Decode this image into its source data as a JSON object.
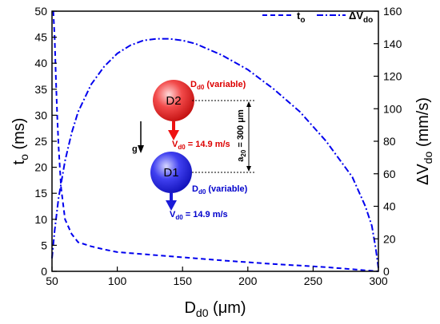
{
  "chart_data": {
    "type": "line",
    "xlabel": "D",
    "xlabel_sub": "d0",
    "xlabel_unit": " (μm)",
    "ylabel_left": "t",
    "ylabel_left_sub": "o",
    "ylabel_left_unit": " (ms)",
    "ylabel_right": "ΔV",
    "ylabel_right_sub": "do",
    "ylabel_right_unit": " (mm/s)",
    "xlim": [
      50,
      300
    ],
    "ylim_left": [
      0,
      50
    ],
    "ylim_right": [
      0,
      160
    ],
    "x_ticks": [
      "50",
      "100",
      "150",
      "200",
      "250",
      "300"
    ],
    "y_left_ticks": [
      "0",
      "5",
      "10",
      "15",
      "20",
      "25",
      "30",
      "35",
      "40",
      "45",
      "50"
    ],
    "y_right_ticks": [
      "0",
      "20",
      "40",
      "60",
      "80",
      "100",
      "120",
      "140",
      "160"
    ],
    "legend": {
      "position": "top-right"
    },
    "series": [
      {
        "name": "t",
        "name_sub": "o",
        "axis": "left",
        "color": "#0000ee",
        "dash": "dashed",
        "x": [
          51,
          52,
          53,
          54,
          55,
          57,
          60,
          65,
          70,
          80,
          90,
          100,
          120,
          140,
          160,
          180,
          200,
          220,
          240,
          260,
          280,
          300
        ],
        "y": [
          50,
          45,
          37,
          30,
          24,
          16,
          10,
          7.2,
          5.6,
          4.8,
          4.2,
          3.7,
          3.3,
          2.9,
          2.5,
          2.1,
          1.75,
          1.4,
          1.1,
          0.8,
          0.4,
          0
        ]
      },
      {
        "name": "ΔV",
        "name_sub": "do",
        "axis": "right",
        "color": "#0000ee",
        "dash": "dashdot",
        "x": [
          50,
          52,
          55,
          60,
          65,
          70,
          80,
          90,
          100,
          110,
          120,
          130,
          140,
          150,
          160,
          180,
          200,
          220,
          240,
          260,
          280,
          290,
          295,
          298,
          300
        ],
        "y": [
          8,
          25,
          45,
          68,
          85,
          98,
          115,
          126,
          134,
          139,
          142,
          143,
          143,
          142,
          140,
          133,
          124,
          112,
          98,
          80,
          58,
          40,
          28,
          14,
          2
        ]
      }
    ],
    "annotations": {
      "drop_top_label": "D2",
      "drop_bottom_label": "D1",
      "diameter_main": "D",
      "diameter_sub": "d0",
      "diameter_suffix": " (variable)",
      "velocity_main": "V",
      "velocity_sub": "d0",
      "velocity_suffix": " = 14.9 m/s",
      "spacing_main": "a",
      "spacing_sub": "20",
      "spacing_suffix": " = 300 μm",
      "gravity": "g"
    },
    "colors": {
      "line": "#0000ee",
      "drop_top": "#e83030",
      "drop_bottom": "#2b2bea",
      "arrow_top": "#ee1111",
      "arrow_bottom": "#1a1ad8",
      "label_top": "#dd0000",
      "label_bottom": "#0000cc"
    }
  }
}
